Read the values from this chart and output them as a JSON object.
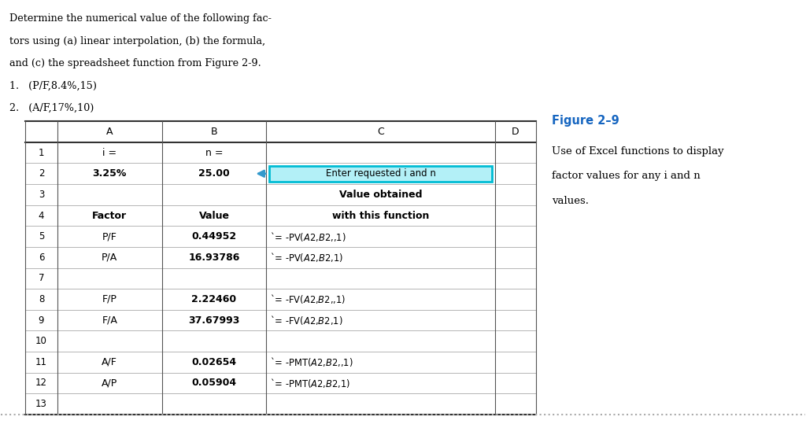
{
  "bg_color": "#ffffff",
  "text_color": "#000000",
  "blue_text_color": "#1565c0",
  "figure_title": "Figure 2–9",
  "figure_caption_lines": [
    "Use of Excel functions to display",
    "factor values for any i and n",
    "values."
  ],
  "problem_text_lines": [
    "Determine the numerical value of the following fac-",
    "tors using (a) linear interpolation, (b) the formula,",
    "and (c) the spreadsheet function from Figure 2-9.",
    "1.   (P/F,8.4%,15)",
    "2.   (A/F,17%,10)"
  ],
  "row_data": [
    [
      "1",
      "i =",
      false,
      "n =",
      false,
      "",
      false
    ],
    [
      "2",
      "3.25%",
      true,
      "25.00",
      true,
      "",
      false
    ],
    [
      "3",
      "",
      false,
      "",
      false,
      "Value obtained",
      true
    ],
    [
      "4",
      "Factor",
      true,
      "Value",
      true,
      "with this function",
      true
    ],
    [
      "5",
      "P/F",
      false,
      "0.44952",
      true,
      "`= -PV($A$2,$B$2,,1)",
      false
    ],
    [
      "6",
      "P/A",
      false,
      "16.93786",
      true,
      "`= -PV($A$2,$B$2,1)",
      false
    ],
    [
      "7",
      "",
      false,
      "",
      false,
      "",
      false
    ],
    [
      "8",
      "F/P",
      false,
      "2.22460",
      true,
      "`= -FV($A$2,$B$2,,1)",
      false
    ],
    [
      "9",
      "F/A",
      false,
      "37.67993",
      true,
      "`= -FV($A$2,$B$2,1)",
      false
    ],
    [
      "10",
      "",
      false,
      "",
      false,
      "",
      false
    ],
    [
      "11",
      "A/F",
      false,
      "0.02654",
      true,
      "`= -PMT($A$2,$B$2,,1)",
      false
    ],
    [
      "12",
      "A/P",
      false,
      "0.05904",
      true,
      "`= -PMT($A$2,$B$2,1)",
      false
    ],
    [
      "13",
      "",
      false,
      "",
      false,
      "",
      false
    ]
  ],
  "callout_text": "Enter requested i and n",
  "callout_facecolor": "#b3f0f7",
  "callout_edgecolor": "#00bcd4",
  "arrow_color": "#3399cc",
  "tl": 0.03,
  "tr": 0.665,
  "tt": 0.715,
  "tb": 0.02,
  "col_offsets": [
    0.0,
    0.04,
    0.17,
    0.3,
    0.585,
    0.635
  ]
}
